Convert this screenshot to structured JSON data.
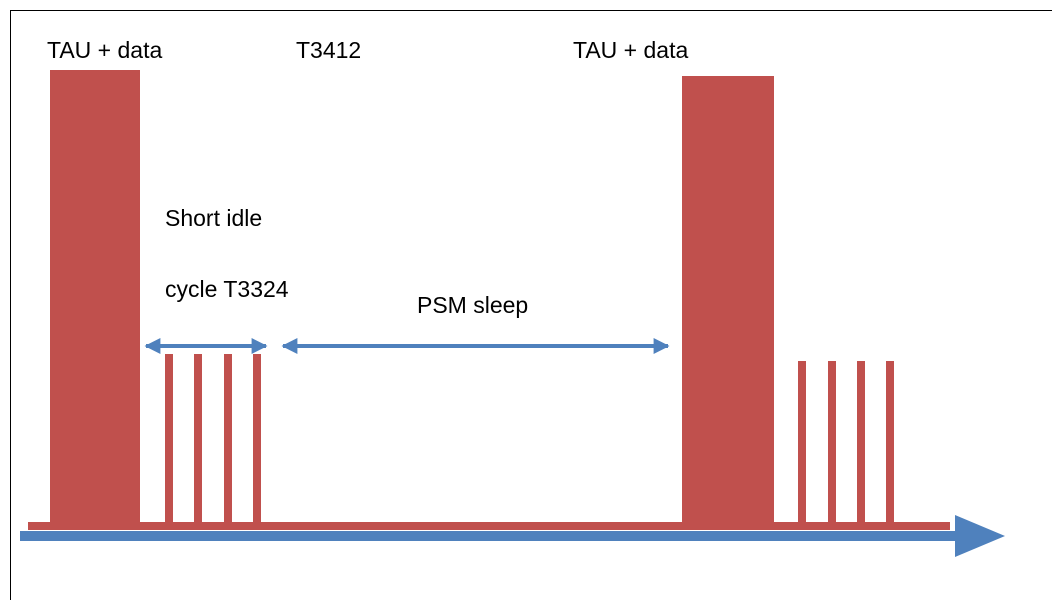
{
  "labels": {
    "tau_data_left": "TAU + data",
    "t3412": "T3412",
    "tau_data_right": "TAU + data",
    "short_idle": "Short idle",
    "cycle_t3324": "cycle T3324",
    "psm_sleep": "PSM sleep"
  },
  "colors": {
    "bar": "#c0504d",
    "arrow": "#4f81bd",
    "text": "#000000",
    "frame": "#000000"
  }
}
